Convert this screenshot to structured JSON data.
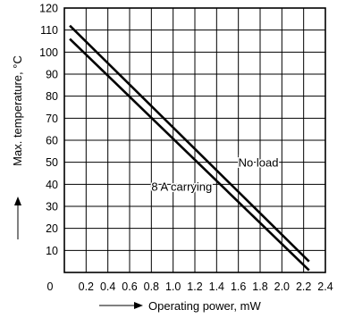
{
  "chart_data": {
    "type": "line",
    "title": "",
    "xlabel": "Operating power, mW",
    "ylabel": "Max. temperature, °C",
    "xlim": [
      0,
      2.4
    ],
    "ylim": [
      0,
      120
    ],
    "x_ticks": [
      0.2,
      0.4,
      0.6,
      0.8,
      1.0,
      1.2,
      1.4,
      1.6,
      1.8,
      2.0,
      2.2,
      2.4
    ],
    "x_tick_labels": [
      "0.2",
      "0.4",
      "0.6",
      "0.8",
      "1.0",
      "1.2",
      "1.4",
      "1.6",
      "1.8",
      "2.0",
      "2.2",
      "2.4"
    ],
    "y_ticks": [
      0,
      10,
      20,
      30,
      40,
      50,
      60,
      70,
      80,
      90,
      100,
      110,
      120
    ],
    "y_tick_labels": [
      "0",
      "10",
      "20",
      "30",
      "40",
      "50",
      "60",
      "70",
      "80",
      "90",
      "100",
      "110",
      "120"
    ],
    "grid": true,
    "series": [
      {
        "name": "No load",
        "x": [
          0.05,
          2.25
        ],
        "y": [
          112,
          5
        ]
      },
      {
        "name": "8 A carrying",
        "x": [
          0.05,
          2.25
        ],
        "y": [
          106,
          1
        ]
      }
    ],
    "annotations": [
      {
        "text": "No load",
        "x": 1.6,
        "y": 48
      },
      {
        "text": "8 A carrying",
        "x": 0.8,
        "y": 37
      }
    ]
  }
}
